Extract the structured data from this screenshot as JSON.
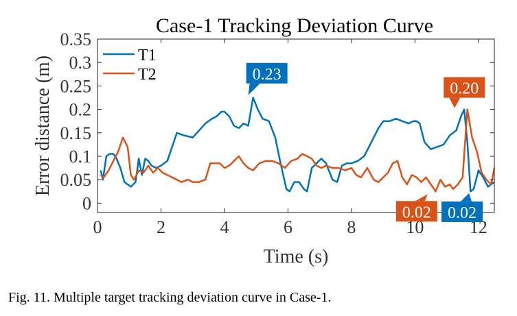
{
  "chart_data": {
    "type": "line",
    "title": "Case-1 Tracking Deviation Curve",
    "xlabel": "Time (s)",
    "ylabel": "Error distance (m)",
    "xlim": [
      0,
      12.5
    ],
    "ylim": [
      -0.02,
      0.35
    ],
    "xticks": [
      0,
      2,
      4,
      6,
      8,
      10,
      12
    ],
    "yticks": [
      0,
      0.05,
      0.1,
      0.15,
      0.2,
      0.25,
      0.3,
      0.35
    ],
    "ytick_labels": [
      "0",
      "0.05",
      "0.1",
      "0.15",
      "0.2",
      "0.25",
      "0.3",
      "0.35"
    ],
    "legend_position": "top-left",
    "series": [
      {
        "name": "T1",
        "color": "#0072BD",
        "x": [
          0.1,
          0.17,
          0.28,
          0.38,
          0.5,
          0.6,
          0.72,
          0.85,
          0.95,
          1.05,
          1.2,
          1.3,
          1.4,
          1.5,
          1.6,
          1.7,
          1.85,
          2.0,
          2.2,
          2.35,
          2.5,
          2.7,
          3.0,
          3.2,
          3.4,
          3.6,
          3.75,
          3.9,
          4.0,
          4.15,
          4.3,
          4.45,
          4.6,
          4.75,
          4.9,
          5.05,
          5.2,
          5.4,
          5.6,
          5.75,
          5.85,
          5.95,
          6.05,
          6.2,
          6.35,
          6.5,
          6.6,
          6.75,
          6.9,
          7.05,
          7.2,
          7.4,
          7.55,
          7.7,
          7.85,
          8.0,
          8.2,
          8.4,
          8.55,
          8.7,
          8.85,
          9.0,
          9.2,
          9.4,
          9.6,
          9.8,
          9.95,
          10.05,
          10.15,
          10.3,
          10.5,
          10.7,
          10.9,
          11.1,
          11.3,
          11.45,
          11.55,
          11.65,
          11.75,
          11.85,
          12.0,
          12.15,
          12.3,
          12.5
        ],
        "y": [
          0.07,
          0.05,
          0.1,
          0.105,
          0.105,
          0.095,
          0.075,
          0.045,
          0.04,
          0.035,
          0.045,
          0.095,
          0.06,
          0.095,
          0.09,
          0.08,
          0.075,
          0.08,
          0.09,
          0.12,
          0.15,
          0.145,
          0.14,
          0.155,
          0.17,
          0.18,
          0.185,
          0.195,
          0.195,
          0.185,
          0.165,
          0.16,
          0.17,
          0.165,
          0.225,
          0.2,
          0.18,
          0.175,
          0.14,
          0.09,
          0.06,
          0.03,
          0.025,
          0.045,
          0.045,
          0.03,
          0.025,
          0.075,
          0.085,
          0.095,
          0.085,
          0.05,
          0.045,
          0.08,
          0.085,
          0.085,
          0.09,
          0.1,
          0.12,
          0.14,
          0.16,
          0.175,
          0.175,
          0.18,
          0.175,
          0.17,
          0.175,
          0.175,
          0.17,
          0.13,
          0.115,
          0.12,
          0.125,
          0.145,
          0.155,
          0.185,
          0.2,
          0.13,
          0.025,
          0.03,
          0.07,
          0.055,
          0.035,
          0.045
        ]
      },
      {
        "name": "T2",
        "color": "#D95319",
        "x": [
          0.1,
          0.2,
          0.35,
          0.5,
          0.65,
          0.8,
          0.95,
          1.05,
          1.15,
          1.3,
          1.45,
          1.6,
          1.75,
          1.9,
          2.05,
          2.2,
          2.35,
          2.5,
          2.65,
          2.85,
          3.0,
          3.2,
          3.4,
          3.55,
          3.7,
          3.85,
          4.0,
          4.15,
          4.3,
          4.45,
          4.6,
          4.75,
          4.9,
          5.1,
          5.3,
          5.5,
          5.7,
          5.9,
          6.1,
          6.3,
          6.45,
          6.6,
          6.75,
          6.9,
          7.05,
          7.2,
          7.4,
          7.6,
          7.8,
          8.0,
          8.15,
          8.3,
          8.5,
          8.7,
          8.85,
          9.0,
          9.15,
          9.3,
          9.45,
          9.6,
          9.75,
          9.9,
          10.05,
          10.2,
          10.35,
          10.5,
          10.65,
          10.8,
          10.95,
          11.1,
          11.2,
          11.35,
          11.5,
          11.65,
          11.8,
          11.95,
          12.1,
          12.25,
          12.4,
          12.5
        ],
        "y": [
          0.06,
          0.055,
          0.07,
          0.09,
          0.11,
          0.14,
          0.12,
          0.06,
          0.05,
          0.07,
          0.065,
          0.08,
          0.065,
          0.075,
          0.065,
          0.06,
          0.055,
          0.05,
          0.045,
          0.05,
          0.045,
          0.045,
          0.05,
          0.085,
          0.085,
          0.085,
          0.075,
          0.08,
          0.09,
          0.1,
          0.085,
          0.075,
          0.07,
          0.085,
          0.09,
          0.09,
          0.085,
          0.075,
          0.09,
          0.095,
          0.105,
          0.1,
          0.095,
          0.08,
          0.075,
          0.08,
          0.075,
          0.075,
          0.07,
          0.075,
          0.06,
          0.055,
          0.075,
          0.05,
          0.045,
          0.055,
          0.065,
          0.085,
          0.09,
          0.055,
          0.04,
          0.06,
          0.055,
          0.045,
          0.055,
          0.04,
          0.025,
          0.05,
          0.035,
          0.04,
          0.03,
          0.04,
          0.055,
          0.2,
          0.14,
          0.11,
          0.065,
          0.05,
          0.04,
          0.075
        ]
      }
    ],
    "annotations": [
      {
        "text": "0.23",
        "series": "T1",
        "x": 4.75,
        "y": 0.226,
        "color": "#0072BD",
        "placement": "above-right"
      },
      {
        "text": "0.20",
        "series": "T2",
        "x": 11.25,
        "y": 0.2,
        "color": "#D95319",
        "placement": "above"
      },
      {
        "text": "0.02",
        "series": "T2",
        "x": 10.4,
        "y": 0.022,
        "color": "#D95319",
        "placement": "below-left"
      },
      {
        "text": "0.02",
        "series": "T1",
        "x": 11.7,
        "y": 0.024,
        "color": "#0072BD",
        "placement": "below"
      }
    ]
  },
  "caption": "Fig. 11.  Multiple target tracking deviation curve in Case-1."
}
